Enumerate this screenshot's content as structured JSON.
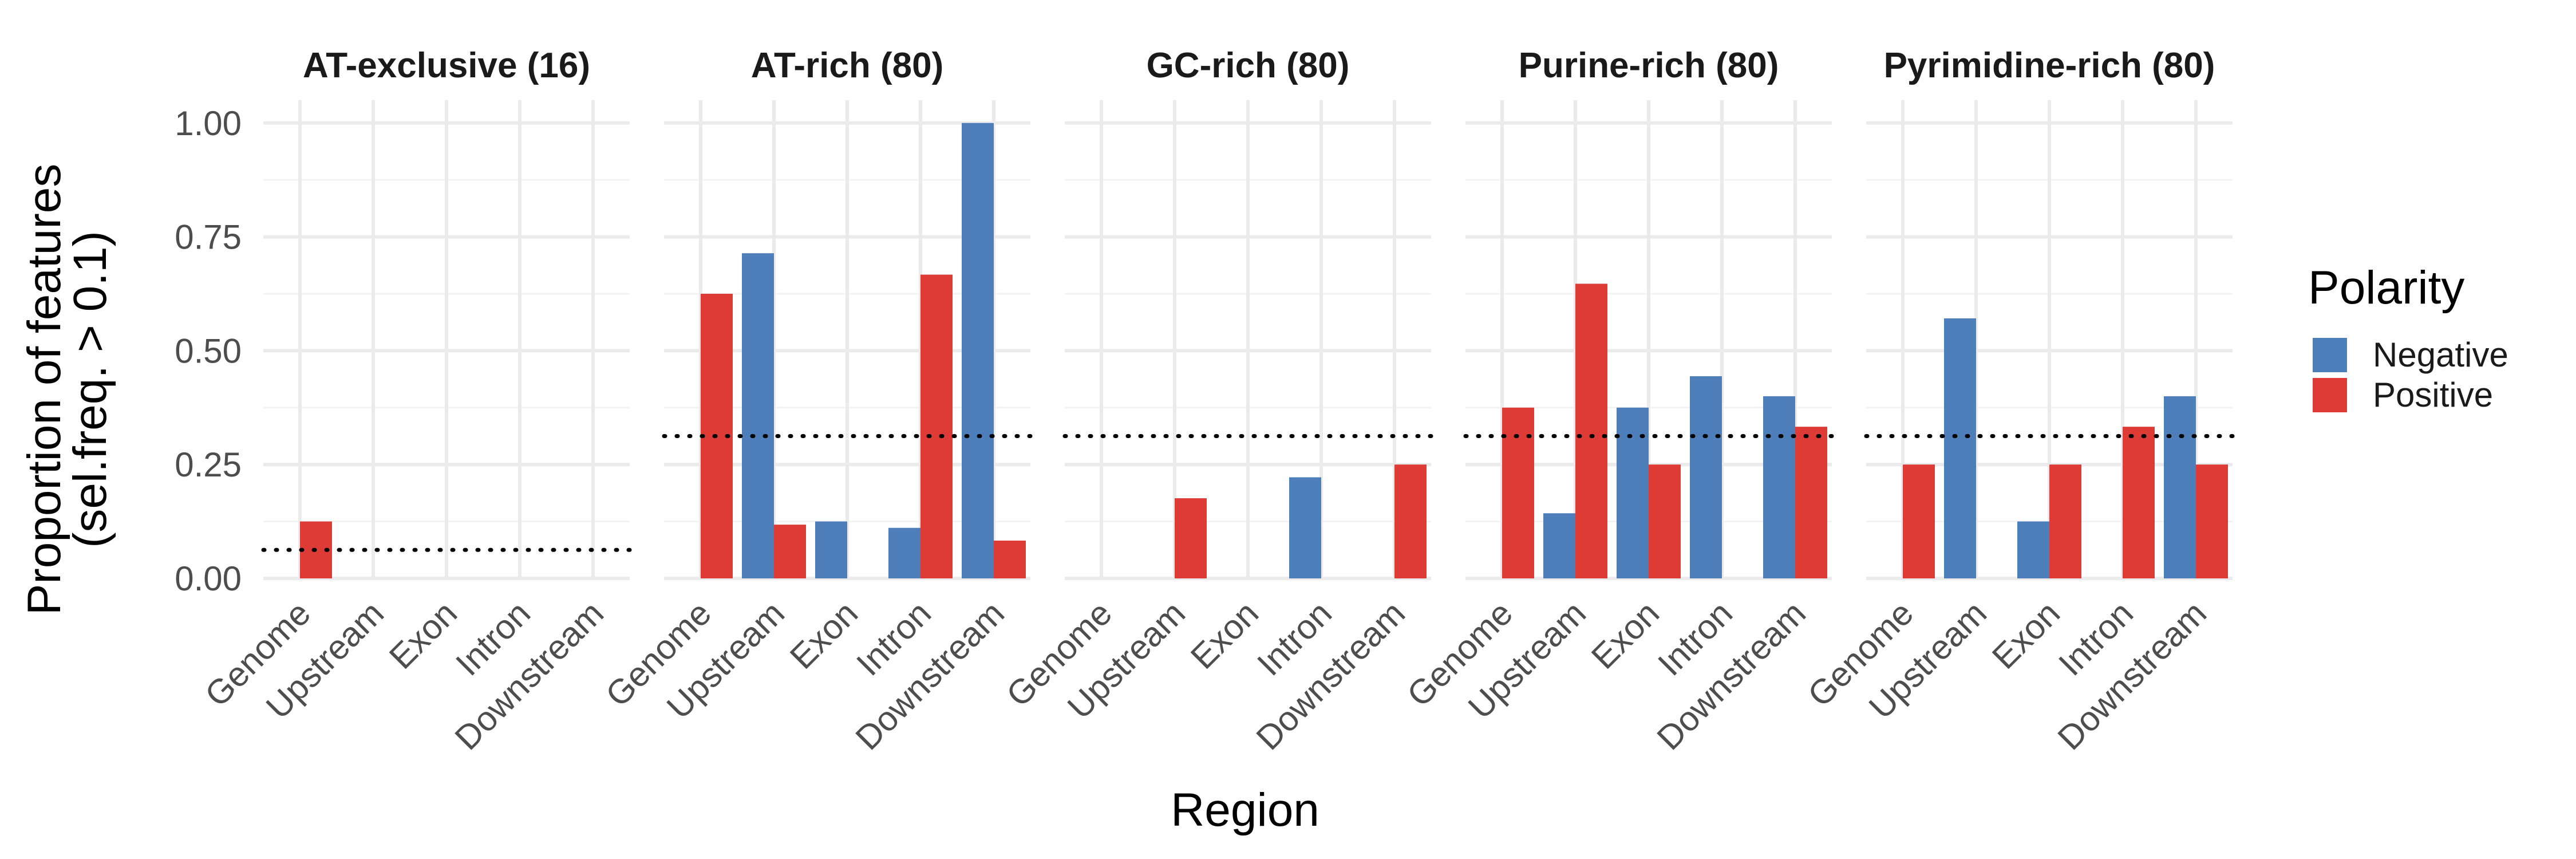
{
  "chart_data": {
    "type": "bar",
    "layout": "faceted",
    "xlabel": "Region",
    "ylabel": "Proportion of features",
    "ylabel_sub": "(sel.freq. > 0.1)",
    "ylim": [
      0,
      1.05
    ],
    "yticks": [
      0.0,
      0.25,
      0.5,
      0.75,
      1.0
    ],
    "ytick_labels": [
      "0.00",
      "0.25",
      "0.50",
      "0.75",
      "1.00"
    ],
    "categories": [
      "Genome",
      "Upstream",
      "Exon",
      "Intron",
      "Downstream"
    ],
    "grid": true,
    "legend": {
      "title": "Polarity",
      "position": "right",
      "entries": [
        {
          "name": "Negative",
          "color": "#4e7fbb"
        },
        {
          "name": "Positive",
          "color": "#de3b36"
        }
      ]
    },
    "facets": [
      {
        "title": "AT-exclusive (16)",
        "reference_line": 0.0625,
        "series": [
          {
            "name": "Negative",
            "values": [
              0,
              0,
              0,
              0,
              0
            ]
          },
          {
            "name": "Positive",
            "values": [
              0.125,
              0,
              0,
              0,
              0
            ]
          }
        ]
      },
      {
        "title": "AT-rich (80)",
        "reference_line": 0.3125,
        "series": [
          {
            "name": "Negative",
            "values": [
              0,
              0.714,
              0.125,
              0.111,
              1.0
            ]
          },
          {
            "name": "Positive",
            "values": [
              0.625,
              0.118,
              0,
              0.667,
              0.083
            ]
          }
        ]
      },
      {
        "title": "GC-rich (80)",
        "reference_line": 0.3125,
        "series": [
          {
            "name": "Negative",
            "values": [
              0,
              0,
              0,
              0.222,
              0
            ]
          },
          {
            "name": "Positive",
            "values": [
              0,
              0.176,
              0,
              0,
              0.25
            ]
          }
        ]
      },
      {
        "title": "Purine-rich (80)",
        "reference_line": 0.3125,
        "series": [
          {
            "name": "Negative",
            "values": [
              0,
              0.143,
              0.375,
              0.444,
              0.4
            ]
          },
          {
            "name": "Positive",
            "values": [
              0.375,
              0.647,
              0.25,
              0,
              0.333
            ]
          }
        ]
      },
      {
        "title": "Pyrimidine-rich (80)",
        "reference_line": 0.3125,
        "series": [
          {
            "name": "Negative",
            "values": [
              0,
              0.571,
              0.125,
              0,
              0.4
            ]
          },
          {
            "name": "Positive",
            "values": [
              0.25,
              0,
              0.25,
              0.333,
              0.25
            ]
          }
        ]
      }
    ]
  }
}
